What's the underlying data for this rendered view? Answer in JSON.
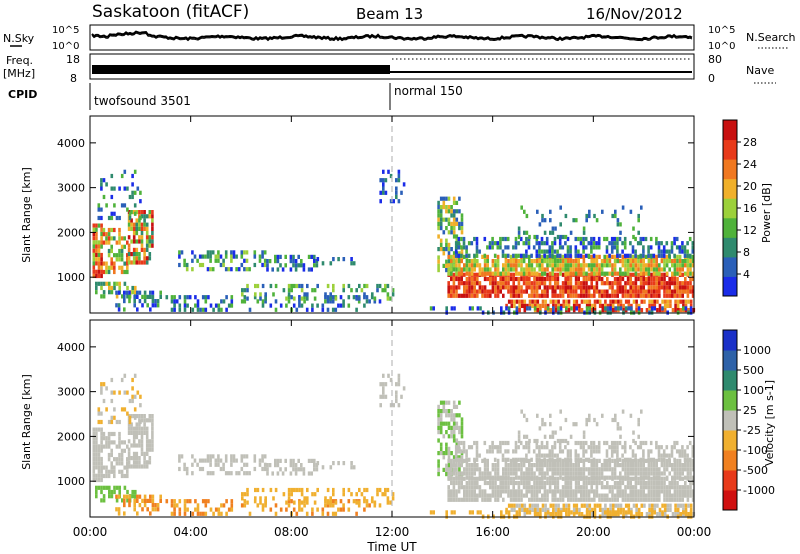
{
  "header": {
    "station": "Saskatoon (fitACF)",
    "beam": "Beam 13",
    "date": "16/Nov/2012"
  },
  "noise_panel": {
    "left_label": "N.Sky",
    "right_label": "N.Search",
    "left_ticks": [
      "10^5",
      "10^0"
    ],
    "right_ticks": [
      "10^5",
      "10^0"
    ]
  },
  "freq_panel": {
    "left_label_1": "Freq.",
    "left_label_2": "[MHz]",
    "left_ticks": [
      "18",
      "8"
    ],
    "right_label": "Nave",
    "right_ticks": [
      "80",
      "0"
    ]
  },
  "cpid_panel": {
    "label": "CPID",
    "programs": [
      "twofsound 3501",
      "normal 150"
    ]
  },
  "x_axis": {
    "label": "Time UT",
    "ticks": [
      "00:00",
      "04:00",
      "08:00",
      "12:00",
      "16:00",
      "20:00",
      "00:00"
    ]
  },
  "chart_data": [
    {
      "type": "heatmap",
      "quantity": "Power",
      "ylabel": "Slant Range [km]",
      "ylim": [
        200,
        4600
      ],
      "yticks": [
        "1000",
        "2000",
        "3000",
        "4000"
      ],
      "colorbar_label": "Power [dB]",
      "colorbar_ticks": [
        "4",
        "8",
        "12",
        "16",
        "20",
        "24",
        "28"
      ],
      "colorbar_range": [
        0,
        32
      ],
      "colors": [
        "#1a2ce8",
        "#2a5fb8",
        "#2f8a6e",
        "#4fb23a",
        "#9cd03a",
        "#f0b02a",
        "#f07820",
        "#e83a1a",
        "#c81010"
      ]
    },
    {
      "type": "heatmap",
      "quantity": "Velocity",
      "ylabel": "Slant Range [km]",
      "ylim": [
        200,
        4600
      ],
      "yticks": [
        "1000",
        "2000",
        "3000",
        "4000"
      ],
      "colorbar_label": "Velocity [m s-1]",
      "colorbar_ticks": [
        "1000",
        "500",
        "100",
        "25",
        "-25",
        "-100",
        "-500",
        "-1000"
      ],
      "colors": [
        "#1a30c8",
        "#2e62a8",
        "#2f8a6e",
        "#6cc040",
        "#c0c0b8",
        "#f0b030",
        "#f08020",
        "#e83a1a",
        "#d01010"
      ]
    }
  ]
}
